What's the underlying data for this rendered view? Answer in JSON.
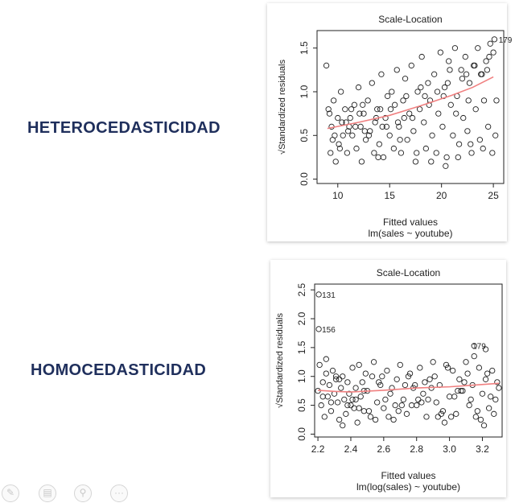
{
  "labels": {
    "heteroscedasticity": "HETEROCEDASTICIDAD",
    "homoscedasticity": "HOMOCEDASTICIDAD"
  },
  "toolbar": {
    "icons": [
      "pen-icon",
      "window-icon",
      "zoom-icon",
      "more-icon"
    ],
    "more_label": "···"
  },
  "chart_data": [
    {
      "type": "scatter",
      "title": "Scale-Location",
      "xlabel": "Fitted values",
      "subtitle": "lm(sales ~ youtube)",
      "ylabel": "√Standardized residuals",
      "xlim": [
        8,
        26
      ],
      "ylim": [
        -0.05,
        1.7
      ],
      "xticks": [
        10,
        15,
        20,
        25
      ],
      "yticks": [
        0.0,
        0.5,
        1.0,
        1.5
      ],
      "grid": false,
      "point_color": "#222222",
      "smooth_color": "#f08080",
      "annotations": [
        {
          "x": 25.2,
          "y": 1.6,
          "text": "179"
        }
      ],
      "smooth": {
        "x": [
          9,
          12,
          15,
          18,
          21,
          23,
          25
        ],
        "y": [
          0.58,
          0.65,
          0.73,
          0.84,
          0.96,
          1.05,
          1.17
        ]
      },
      "points": {
        "x": [
          8.9,
          9.1,
          9.3,
          9.4,
          9.6,
          9.8,
          10.0,
          10.1,
          10.3,
          10.5,
          10.7,
          10.9,
          11.1,
          11.2,
          11.4,
          11.6,
          11.8,
          12.0,
          12.2,
          12.3,
          12.5,
          12.7,
          12.9,
          13.1,
          13.3,
          13.5,
          13.6,
          13.8,
          14.0,
          14.2,
          14.4,
          14.6,
          14.8,
          15.0,
          15.2,
          15.4,
          15.5,
          15.7,
          15.9,
          16.1,
          16.3,
          16.5,
          16.7,
          16.9,
          17.1,
          17.3,
          17.5,
          17.7,
          17.9,
          18.1,
          18.3,
          18.5,
          18.7,
          18.9,
          19.1,
          19.3,
          19.5,
          19.7,
          19.9,
          20.1,
          20.3,
          20.5,
          20.7,
          20.9,
          21.1,
          21.3,
          21.5,
          21.7,
          21.9,
          22.1,
          22.3,
          22.5,
          22.7,
          22.9,
          23.1,
          23.3,
          23.5,
          23.7,
          23.9,
          24.1,
          24.3,
          24.5,
          24.7,
          24.9,
          25.1,
          25.3,
          9.2,
          9.7,
          10.4,
          11.0,
          11.7,
          12.4,
          13.0,
          13.7,
          14.3,
          15.1,
          15.8,
          16.6,
          17.2,
          18.0,
          18.8,
          19.6,
          20.2,
          20.8,
          21.4,
          22.0,
          22.6,
          23.2,
          23.8,
          24.4,
          25.0,
          9.5,
          10.2,
          11.3,
          12.6,
          13.9,
          14.7,
          16.0,
          17.6,
          19.0,
          20.4,
          21.6,
          22.8,
          24.0,
          25.2,
          10.8,
          12.1,
          14.1,
          16.4,
          18.4,
          20.6,
          22.4,
          24.6
        ],
        "y": [
          1.3,
          0.8,
          0.3,
          0.6,
          0.9,
          0.2,
          0.7,
          0.4,
          1.0,
          0.5,
          0.8,
          0.3,
          0.6,
          0.7,
          0.5,
          0.85,
          0.35,
          1.05,
          0.6,
          0.2,
          0.75,
          0.45,
          0.9,
          0.55,
          1.1,
          0.3,
          0.65,
          0.8,
          0.4,
          1.2,
          0.25,
          0.7,
          0.95,
          0.5,
          1.0,
          0.35,
          0.85,
          1.25,
          0.6,
          0.3,
          0.9,
          1.15,
          0.45,
          0.75,
          1.3,
          0.55,
          0.2,
          1.0,
          0.8,
          1.4,
          0.65,
          0.35,
          1.1,
          0.9,
          0.5,
          1.2,
          0.3,
          0.75,
          1.45,
          0.6,
          1.05,
          0.25,
          1.35,
          0.85,
          0.5,
          1.5,
          0.95,
          0.4,
          1.25,
          0.7,
          1.4,
          0.55,
          1.1,
          0.3,
          1.3,
          0.8,
          1.5,
          0.45,
          1.2,
          0.9,
          1.35,
          0.6,
          1.55,
          0.3,
          1.6,
          0.9,
          0.75,
          0.5,
          0.65,
          0.55,
          0.6,
          0.85,
          0.5,
          0.7,
          0.6,
          0.8,
          0.65,
          0.95,
          0.7,
          1.05,
          0.85,
          1.0,
          0.95,
          1.25,
          0.75,
          1.15,
          0.9,
          1.3,
          1.2,
          1.25,
          1.45,
          0.45,
          0.35,
          0.8,
          0.55,
          0.25,
          0.6,
          0.45,
          0.3,
          0.2,
          0.15,
          0.25,
          0.4,
          0.35,
          0.5,
          0.65,
          0.75,
          0.8,
          0.7,
          0.95,
          1.1,
          1.2,
          1.4
        ]
      }
    },
    {
      "type": "scatter",
      "title": "Scale-Location",
      "xlabel": "Fitted values",
      "subtitle": "lm(log(sales) ~ youtube)",
      "ylabel": "√Standardized residuals",
      "xlim": [
        2.18,
        3.32
      ],
      "ylim": [
        -0.05,
        2.6
      ],
      "xticks": [
        2.2,
        2.4,
        2.6,
        2.8,
        3.0,
        3.2
      ],
      "yticks": [
        0.0,
        0.5,
        1.0,
        1.5,
        2.0,
        2.5
      ],
      "grid": false,
      "point_color": "#222222",
      "smooth_color": "#f08080",
      "annotations": [
        {
          "x": 2.205,
          "y": 2.42,
          "text": "131"
        },
        {
          "x": 2.205,
          "y": 1.82,
          "text": "156"
        },
        {
          "x": 3.12,
          "y": 1.53,
          "text": "179"
        }
      ],
      "smooth": {
        "x": [
          2.2,
          2.3,
          2.4,
          2.6,
          2.8,
          3.0,
          3.1,
          3.3
        ],
        "y": [
          0.76,
          0.74,
          0.73,
          0.76,
          0.8,
          0.82,
          0.84,
          0.88
        ]
      },
      "points": {
        "x": [
          2.2,
          2.21,
          2.22,
          2.23,
          2.24,
          2.25,
          2.26,
          2.27,
          2.28,
          2.29,
          2.3,
          2.31,
          2.32,
          2.33,
          2.34,
          2.35,
          2.36,
          2.37,
          2.38,
          2.39,
          2.4,
          2.41,
          2.42,
          2.43,
          2.44,
          2.45,
          2.46,
          2.47,
          2.48,
          2.49,
          2.5,
          2.52,
          2.54,
          2.56,
          2.58,
          2.6,
          2.62,
          2.64,
          2.66,
          2.68,
          2.7,
          2.72,
          2.74,
          2.76,
          2.78,
          2.8,
          2.82,
          2.84,
          2.86,
          2.88,
          2.9,
          2.92,
          2.94,
          2.96,
          2.98,
          3.0,
          3.02,
          3.04,
          3.06,
          3.08,
          3.1,
          3.12,
          3.14,
          3.16,
          3.18,
          3.2,
          3.22,
          3.24,
          3.26,
          3.28,
          3.3,
          2.205,
          2.205,
          3.15,
          3.22,
          2.23,
          2.28,
          2.33,
          2.38,
          2.43,
          2.48,
          2.53,
          2.57,
          2.61,
          2.65,
          2.69,
          2.73,
          2.77,
          2.81,
          2.85,
          2.89,
          2.93,
          2.97,
          3.01,
          3.05,
          3.09,
          3.13,
          3.17,
          3.21,
          3.25,
          3.29,
          2.25,
          2.35,
          2.45,
          2.55,
          2.63,
          2.71,
          2.79,
          2.87,
          2.95,
          3.03,
          3.11,
          3.19,
          3.27,
          2.31,
          2.41,
          2.51,
          2.59,
          2.67,
          2.75,
          2.83,
          2.91,
          2.99,
          3.07,
          3.15,
          3.23
        ],
        "y": [
          0.75,
          1.2,
          0.5,
          0.9,
          0.3,
          1.05,
          0.65,
          0.85,
          0.4,
          1.1,
          0.7,
          0.95,
          0.55,
          0.25,
          0.8,
          1.0,
          0.6,
          0.35,
          0.9,
          0.7,
          0.5,
          1.15,
          0.45,
          0.8,
          0.2,
          1.2,
          0.65,
          0.9,
          0.4,
          1.05,
          0.75,
          0.3,
          1.25,
          0.55,
          0.85,
          0.45,
          1.1,
          0.7,
          0.25,
          0.95,
          1.2,
          0.6,
          0.35,
          1.05,
          0.8,
          0.5,
          1.15,
          0.7,
          0.3,
          0.95,
          1.25,
          0.55,
          0.85,
          0.4,
          1.2,
          0.65,
          1.1,
          0.35,
          0.95,
          0.75,
          1.25,
          0.5,
          0.85,
          0.3,
          1.15,
          0.7,
          0.95,
          0.45,
          1.1,
          0.6,
          0.8,
          2.42,
          1.82,
          1.53,
          1.47,
          0.65,
          0.55,
          0.95,
          0.5,
          0.6,
          0.75,
          1.0,
          0.9,
          0.6,
          0.8,
          0.4,
          0.85,
          0.5,
          0.6,
          0.9,
          0.8,
          0.3,
          0.2,
          0.3,
          0.75,
          0.9,
          0.6,
          0.4,
          0.15,
          0.65,
          0.9,
          1.3,
          0.15,
          0.45,
          0.25,
          0.3,
          0.5,
          0.85,
          0.6,
          0.35,
          0.65,
          1.05,
          0.25,
          0.35,
          1.0,
          0.6,
          0.4,
          1.0,
          0.5,
          1.0,
          0.55,
          1.0,
          1.15,
          0.75,
          1.35,
          1.05
        ]
      }
    }
  ]
}
